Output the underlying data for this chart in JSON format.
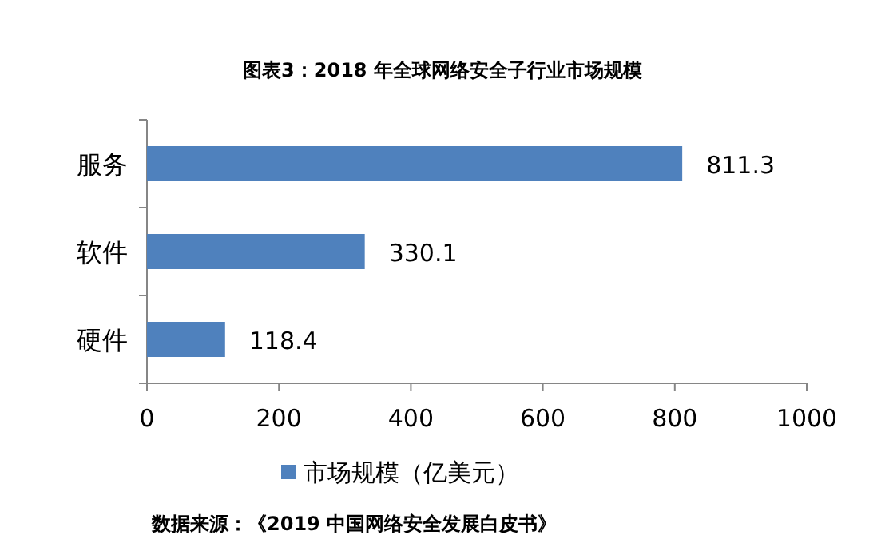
{
  "chart_data": {
    "type": "bar",
    "orientation": "horizontal",
    "title": "图表3：2018 年全球网络安全子行业市场规模",
    "categories": [
      "服务",
      "软件",
      "硬件"
    ],
    "series": [
      {
        "name": "市场规模（亿美元）",
        "color": "#4f81bd",
        "values": [
          811.3,
          330.1,
          118.4
        ]
      }
    ],
    "xlim": [
      0,
      1000
    ],
    "xticks": [
      0,
      200,
      400,
      600,
      800,
      1000
    ],
    "data_labels": true,
    "grid": false,
    "legend": "bottom",
    "annotations": [
      "数据来源：《2019 中国网络安全发展白皮书》"
    ]
  }
}
